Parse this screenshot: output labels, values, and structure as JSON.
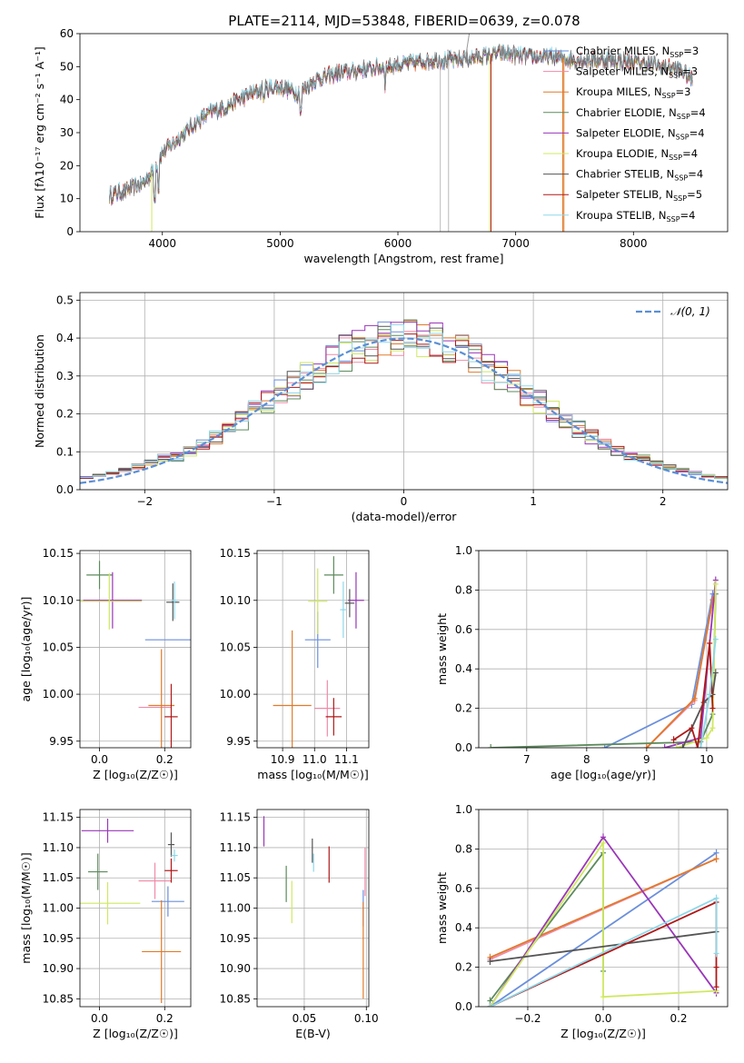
{
  "title": "PLATE=2114, MJD=53848, FIBERID=0639, z=0.078",
  "colors": {
    "chabrier_miles": "#6b8fdc",
    "salpeter_miles": "#f08aa8",
    "kroupa_miles": "#e07a2a",
    "chabrier_elodie": "#5c8a5c",
    "salpeter_elodie": "#9a36b8",
    "kroupa_elodie": "#cfe862",
    "chabrier_stelib": "#555555",
    "salpeter_stelib": "#b01818",
    "kroupa_stelib": "#8fd8e8",
    "gauss": "#5b8fd6"
  },
  "legend": [
    {
      "key": "chabrier_miles",
      "label": "Chabrier MILES, N",
      "sub": "SSP",
      "eq": "=3"
    },
    {
      "key": "salpeter_miles",
      "label": "Salpeter MILES, N",
      "sub": "SSP",
      "eq": "=3"
    },
    {
      "key": "kroupa_miles",
      "label": "Kroupa MILES, N",
      "sub": "SSP",
      "eq": "=3"
    },
    {
      "key": "chabrier_elodie",
      "label": "Chabrier ELODIE, N",
      "sub": "SSP",
      "eq": "=4"
    },
    {
      "key": "salpeter_elodie",
      "label": "Salpeter ELODIE, N",
      "sub": "SSP",
      "eq": "=4"
    },
    {
      "key": "kroupa_elodie",
      "label": "Kroupa ELODIE, N",
      "sub": "SSP",
      "eq": "=4"
    },
    {
      "key": "chabrier_stelib",
      "label": "Chabrier STELIB, N",
      "sub": "SSP",
      "eq": "=4"
    },
    {
      "key": "salpeter_stelib",
      "label": "Salpeter STELIB, N",
      "sub": "SSP",
      "eq": "=5"
    },
    {
      "key": "kroupa_stelib",
      "label": "Kroupa STELIB, N",
      "sub": "SSP",
      "eq": "=4"
    }
  ],
  "chart_data": [
    {
      "id": "spectrum",
      "type": "line",
      "xlabel": "wavelength [Angstrom, rest frame]",
      "ylabel": "Flux [fλ10⁻¹⁷ erg cm⁻² s⁻¹ A⁻¹]",
      "xlim": [
        3300,
        8800
      ],
      "ylim": [
        0,
        60
      ],
      "xticks": [
        4000,
        5000,
        6000,
        7000,
        8000
      ],
      "yticks": [
        0,
        10,
        20,
        30,
        40,
        50,
        60
      ],
      "continuum": {
        "x": [
          3550,
          3700,
          3850,
          3950,
          4000,
          4100,
          4250,
          4400,
          4550,
          4700,
          4850,
          5000,
          5150,
          5300,
          5500,
          5700,
          5900,
          6100,
          6300,
          6500,
          6700,
          6900,
          7100,
          7300,
          7500,
          7800,
          8100,
          8400,
          8500
        ],
        "y": [
          11,
          12.5,
          15,
          20,
          24,
          27,
          32,
          36,
          38,
          41,
          43,
          44,
          42,
          46,
          48,
          49,
          50,
          51,
          52,
          52,
          53,
          54,
          53,
          53,
          52,
          52,
          51,
          49,
          46
        ]
      }
    },
    {
      "id": "residuals",
      "type": "histogram",
      "xlabel": "(data-model)/error",
      "ylabel": "Normed distribution",
      "xlim": [
        -2.5,
        2.5
      ],
      "ylim": [
        0,
        0.52
      ],
      "xticks": [
        -2,
        -1,
        0,
        1,
        2
      ],
      "yticks": [
        0,
        0.1,
        0.2,
        0.3,
        0.4,
        0.5
      ],
      "legend_label": "𝒩(0, 1)",
      "bin_width": 0.1
    },
    {
      "id": "age_vs_z",
      "type": "scatter",
      "xlabel": "Z [log₁₀(Z/Z☉)]",
      "ylabel": "age  [log₁₀(age/yr)]",
      "xlim": [
        -0.06,
        0.28
      ],
      "ylim": [
        9.943,
        10.153
      ],
      "xticks": [
        0.0,
        0.2
      ],
      "yticks": [
        9.95,
        10.0,
        10.05,
        10.1,
        10.15
      ],
      "points": [
        {
          "key": "chabrier_miles",
          "x": 0.21,
          "xerr": 0.07,
          "y": 10.058,
          "yerr": 0.0
        },
        {
          "key": "salpeter_miles",
          "x": 0.17,
          "xerr": 0.05,
          "y": 9.986,
          "yerr": 0.0
        },
        {
          "key": "kroupa_miles",
          "x": 0.19,
          "xerr": 0.04,
          "y": 9.988,
          "yerr": 0.06
        },
        {
          "key": "chabrier_elodie",
          "x": 0.0,
          "xerr": 0.04,
          "y": 10.127,
          "yerr": 0.015
        },
        {
          "key": "salpeter_elodie",
          "x": 0.04,
          "xerr": 0.09,
          "y": 10.1,
          "yerr": 0.03
        },
        {
          "key": "kroupa_elodie",
          "x": 0.03,
          "xerr": 0.1,
          "y": 10.099,
          "yerr": 0.03
        },
        {
          "key": "chabrier_stelib",
          "x": 0.225,
          "xerr": 0.02,
          "y": 10.098,
          "yerr": 0.02
        },
        {
          "key": "salpeter_stelib",
          "x": 0.22,
          "xerr": 0.02,
          "y": 9.976,
          "yerr": 0.035
        },
        {
          "key": "kroupa_stelib",
          "x": 0.23,
          "xerr": 0.01,
          "y": 10.1,
          "yerr": 0.02
        }
      ]
    },
    {
      "id": "age_vs_mass",
      "type": "scatter",
      "xlabel": "mass [log₁₀(M/M☉)]",
      "ylabel": "",
      "xlim": [
        10.82,
        11.17
      ],
      "ylim": [
        9.943,
        10.153
      ],
      "xticks": [
        10.9,
        11.0,
        11.1
      ],
      "yticks": [
        9.95,
        10.0,
        10.05,
        10.1,
        10.15
      ],
      "points": [
        {
          "key": "chabrier_miles",
          "x": 11.01,
          "xerr": 0.04,
          "y": 10.058,
          "yerr": 0.03
        },
        {
          "key": "salpeter_miles",
          "x": 11.04,
          "xerr": 0.04,
          "y": 9.985,
          "yerr": 0.03
        },
        {
          "key": "kroupa_miles",
          "x": 10.93,
          "xerr": 0.06,
          "y": 9.988,
          "yerr": 0.08
        },
        {
          "key": "chabrier_elodie",
          "x": 11.06,
          "xerr": 0.03,
          "y": 10.127,
          "yerr": 0.02
        },
        {
          "key": "salpeter_elodie",
          "x": 11.13,
          "xerr": 0.025,
          "y": 10.1,
          "yerr": 0.03
        },
        {
          "key": "kroupa_elodie",
          "x": 11.01,
          "xerr": 0.03,
          "y": 10.099,
          "yerr": 0.035
        },
        {
          "key": "chabrier_stelib",
          "x": 11.11,
          "xerr": 0.015,
          "y": 10.097,
          "yerr": 0.015
        },
        {
          "key": "salpeter_stelib",
          "x": 11.06,
          "xerr": 0.025,
          "y": 9.976,
          "yerr": 0.02
        },
        {
          "key": "kroupa_stelib",
          "x": 11.09,
          "xerr": 0.01,
          "y": 10.09,
          "yerr": 0.03
        }
      ]
    },
    {
      "id": "weight_vs_age",
      "type": "line",
      "xlabel": "age  [log₁₀(age/yr)]",
      "ylabel": "mass weight",
      "xlim": [
        6.2,
        10.35
      ],
      "ylim": [
        0,
        1.0
      ],
      "xticks": [
        7,
        8,
        9,
        10
      ],
      "yticks": [
        0,
        0.2,
        0.4,
        0.6,
        0.8,
        1.0
      ],
      "series": [
        {
          "key": "chabrier_miles",
          "x": [
            8.3,
            9.75,
            10.1
          ],
          "y": [
            0.0,
            0.22,
            0.78
          ]
        },
        {
          "key": "salpeter_miles",
          "x": [
            9.0,
            9.8,
            10.1
          ],
          "y": [
            0.0,
            0.24,
            0.75
          ]
        },
        {
          "key": "kroupa_miles",
          "x": [
            9.0,
            9.8,
            10.1
          ],
          "y": [
            0.0,
            0.25,
            0.75
          ]
        },
        {
          "key": "chabrier_elodie",
          "x": [
            6.4,
            9.9,
            10.1,
            10.15
          ],
          "y": [
            0.0,
            0.03,
            0.17,
            0.78
          ]
        },
        {
          "key": "salpeter_elodie",
          "x": [
            9.3,
            9.9,
            10.15
          ],
          "y": [
            0.0,
            0.05,
            0.85
          ]
        },
        {
          "key": "kroupa_elodie",
          "x": [
            9.5,
            10.0,
            10.1,
            10.15
          ],
          "y": [
            0.0,
            0.05,
            0.1,
            0.83
          ]
        },
        {
          "key": "chabrier_stelib",
          "x": [
            9.6,
            9.95,
            10.1,
            10.15
          ],
          "y": [
            0.0,
            0.23,
            0.27,
            0.38
          ]
        },
        {
          "key": "salpeter_stelib",
          "x": [
            9.45,
            9.75,
            9.85,
            10.05,
            10.1
          ],
          "y": [
            0.04,
            0.1,
            0.0,
            0.53,
            0.2
          ]
        },
        {
          "key": "kroupa_stelib",
          "x": [
            9.9,
            10.05,
            10.15
          ],
          "y": [
            0.0,
            0.27,
            0.55
          ]
        }
      ]
    },
    {
      "id": "mass_vs_z",
      "type": "scatter",
      "xlabel": "Z [log₁₀(Z/Z☉)]",
      "ylabel": "mass [log₁₀(M/M☉)]",
      "xlim": [
        -0.06,
        0.28
      ],
      "ylim": [
        10.837,
        11.163
      ],
      "xticks": [
        0.0,
        0.2
      ],
      "yticks": [
        10.85,
        10.9,
        10.95,
        11.0,
        11.05,
        11.1,
        11.15
      ],
      "points": [
        {
          "key": "chabrier_miles",
          "x": 0.21,
          "xerr": 0.05,
          "y": 11.011,
          "yerr": 0.025
        },
        {
          "key": "salpeter_miles",
          "x": 0.17,
          "xerr": 0.05,
          "y": 11.045,
          "yerr": 0.03
        },
        {
          "key": "kroupa_miles",
          "x": 0.19,
          "xerr": 0.06,
          "y": 10.928,
          "yerr": 0.085
        },
        {
          "key": "chabrier_elodie",
          "x": -0.005,
          "xerr": 0.03,
          "y": 11.06,
          "yerr": 0.03
        },
        {
          "key": "salpeter_elodie",
          "x": 0.025,
          "xerr": 0.08,
          "y": 11.128,
          "yerr": 0.02
        },
        {
          "key": "kroupa_elodie",
          "x": 0.025,
          "xerr": 0.1,
          "y": 11.008,
          "yerr": 0.035
        },
        {
          "key": "chabrier_stelib",
          "x": 0.22,
          "xerr": 0.01,
          "y": 11.105,
          "yerr": 0.02
        },
        {
          "key": "salpeter_stelib",
          "x": 0.22,
          "xerr": 0.02,
          "y": 11.062,
          "yerr": 0.02
        },
        {
          "key": "kroupa_stelib",
          "x": 0.23,
          "xerr": 0.01,
          "y": 11.087,
          "yerr": 0.01
        }
      ]
    },
    {
      "id": "mass_vs_ebv",
      "type": "scatter",
      "xlabel": "E(B-V)",
      "ylabel": "",
      "xlim": [
        0.012,
        0.102
      ],
      "ylim": [
        10.837,
        11.163
      ],
      "xticks": [
        0.05,
        0.1
      ],
      "yticks": [
        10.85,
        10.9,
        10.95,
        11.0,
        11.05,
        11.1,
        11.15
      ],
      "points": [
        {
          "key": "chabrier_miles",
          "x": 0.0975,
          "xerr": 0,
          "y": 11.0,
          "yerr": 0.03
        },
        {
          "key": "salpeter_miles",
          "x": 0.099,
          "xerr": 0,
          "y": 11.06,
          "yerr": 0.04
        },
        {
          "key": "kroupa_miles",
          "x": 0.0975,
          "xerr": 0,
          "y": 10.93,
          "yerr": 0.08
        },
        {
          "key": "chabrier_elodie",
          "x": 0.0355,
          "xerr": 0,
          "y": 11.04,
          "yerr": 0.03
        },
        {
          "key": "salpeter_elodie",
          "x": 0.0175,
          "xerr": 0,
          "y": 11.127,
          "yerr": 0.025
        },
        {
          "key": "kroupa_elodie",
          "x": 0.04,
          "xerr": 0,
          "y": 11.01,
          "yerr": 0.035
        },
        {
          "key": "chabrier_stelib",
          "x": 0.0565,
          "xerr": 0,
          "y": 11.095,
          "yerr": 0.02
        },
        {
          "key": "salpeter_stelib",
          "x": 0.07,
          "xerr": 0,
          "y": 11.072,
          "yerr": 0.03
        },
        {
          "key": "kroupa_stelib",
          "x": 0.0575,
          "xerr": 0,
          "y": 11.075,
          "yerr": 0.015
        }
      ]
    },
    {
      "id": "weight_vs_z",
      "type": "line",
      "xlabel": "Z [log₁₀(Z/Z☉)]",
      "ylabel": "mass weight",
      "xlim": [
        -0.33,
        0.33
      ],
      "ylim": [
        0,
        1.0
      ],
      "xticks": [
        -0.2,
        0.0,
        0.2
      ],
      "yticks": [
        0,
        0.2,
        0.4,
        0.6,
        0.8,
        1.0
      ],
      "series": [
        {
          "key": "chabrier_miles",
          "x": [
            -0.3,
            0.3
          ],
          "y": [
            0.0,
            0.78
          ]
        },
        {
          "key": "salpeter_miles",
          "x": [
            -0.3,
            0.3
          ],
          "y": [
            0.24,
            0.75
          ]
        },
        {
          "key": "kroupa_miles",
          "x": [
            -0.3,
            0.3
          ],
          "y": [
            0.25,
            0.75
          ]
        },
        {
          "key": "chabrier_elodie",
          "x": [
            -0.3,
            0.0,
            0.0
          ],
          "y": [
            0.03,
            0.78,
            0.18
          ]
        },
        {
          "key": "salpeter_elodie",
          "x": [
            -0.3,
            0.0,
            0.3
          ],
          "y": [
            0.0,
            0.86,
            0.07
          ]
        },
        {
          "key": "kroupa_elodie",
          "x": [
            -0.3,
            0.0,
            0.0,
            0.3
          ],
          "y": [
            0.0,
            0.83,
            0.05,
            0.08
          ]
        },
        {
          "key": "chabrier_stelib",
          "x": [
            -0.3,
            0.3
          ],
          "y": [
            0.23,
            0.38
          ]
        },
        {
          "key": "salpeter_stelib",
          "x": [
            -0.3,
            0.3,
            0.3,
            0.3
          ],
          "y": [
            0.0,
            0.53,
            0.1,
            0.2
          ]
        },
        {
          "key": "kroupa_stelib",
          "x": [
            -0.3,
            0.3,
            0.3
          ],
          "y": [
            0.0,
            0.55,
            0.27
          ]
        }
      ]
    }
  ]
}
